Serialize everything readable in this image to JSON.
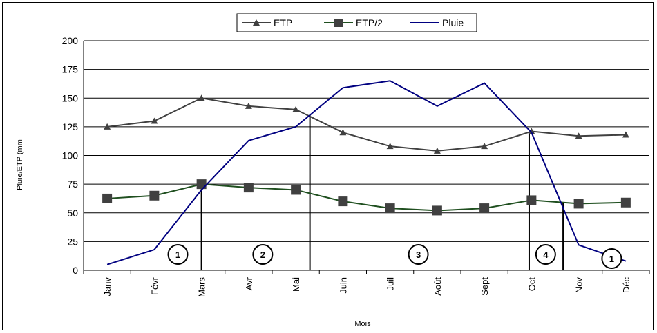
{
  "chart_data": {
    "type": "line",
    "categories": [
      "Janv",
      "Févr",
      "Mars",
      "Avr",
      "Mai",
      "Juin",
      "Juil",
      "Août",
      "Sept",
      "Oct",
      "Nov",
      "Déc"
    ],
    "series": [
      {
        "name": "ETP",
        "marker": "triangle",
        "color": "#404040",
        "values": [
          125,
          130,
          150,
          143,
          140,
          120,
          108,
          104,
          108,
          121,
          117,
          118
        ]
      },
      {
        "name": "ETP/2",
        "marker": "square",
        "color": "#1f4f1f",
        "values": [
          62.5,
          65,
          75,
          72,
          70,
          60,
          54,
          52,
          54,
          61,
          58,
          59
        ]
      },
      {
        "name": "Pluie",
        "marker": "none",
        "color": "#000080",
        "values": [
          5,
          18,
          70,
          113,
          125,
          159,
          165,
          143,
          163,
          120,
          22,
          8
        ]
      }
    ],
    "xlabel": "Mois",
    "ylabel": "Pluie/ETP (mm",
    "ylim": [
      0,
      200
    ],
    "yticks": [
      0,
      25,
      50,
      75,
      100,
      125,
      150,
      175,
      200
    ],
    "grid": true,
    "legend": "top-center",
    "annotations": {
      "period_boundaries_x": [
        2,
        4.3,
        8.95,
        9.67
      ],
      "zones": [
        {
          "label": "1",
          "x": 1.5
        },
        {
          "label": "2",
          "x": 3.3
        },
        {
          "label": "3",
          "x": 6.6
        },
        {
          "label": "4",
          "x": 9.3
        },
        {
          "label": "1",
          "x": 10.7
        }
      ]
    }
  }
}
